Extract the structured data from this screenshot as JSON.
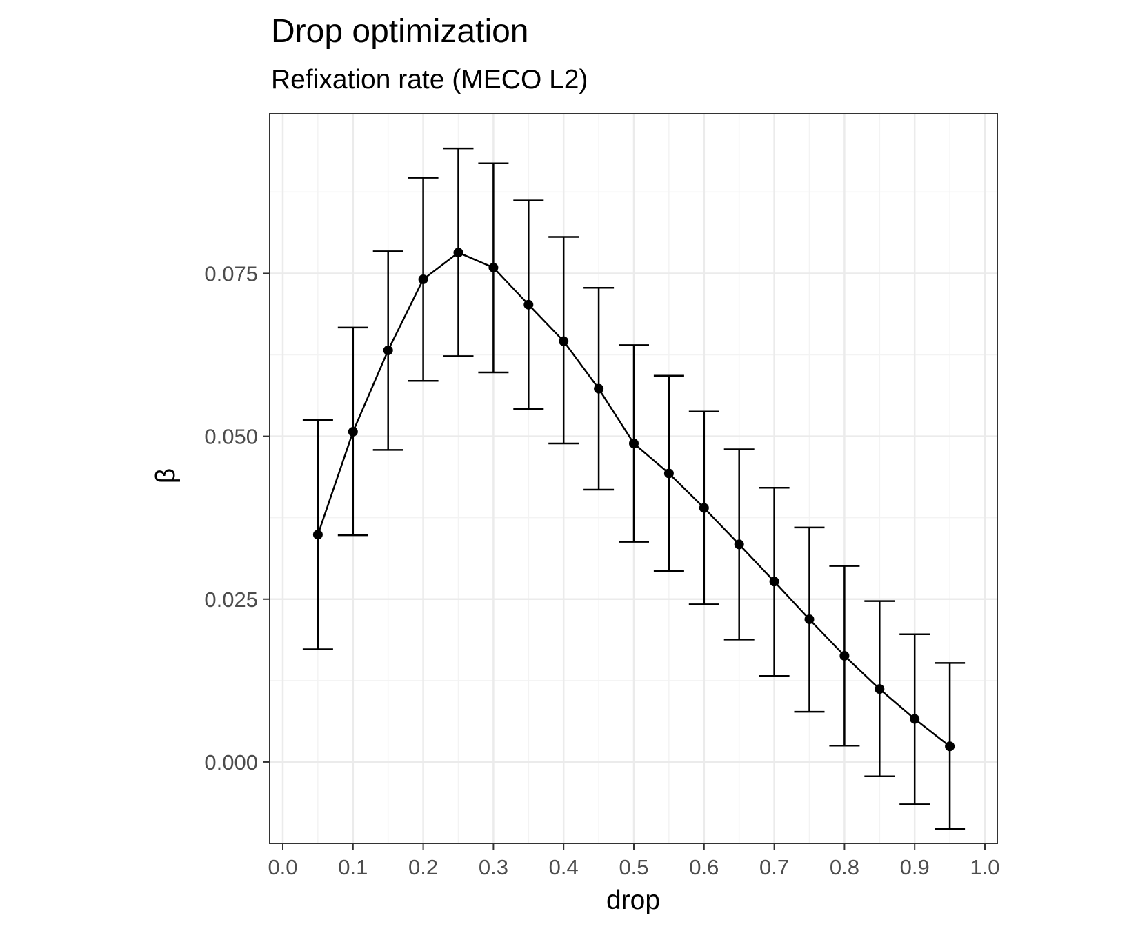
{
  "chart_data": {
    "type": "line",
    "title": "Drop optimization",
    "subtitle": "Refixation rate (MECO L2)",
    "xlabel": "drop",
    "ylabel": "β",
    "xlim": [
      0.0,
      1.0
    ],
    "ylim": [
      -0.0125,
      0.0995
    ],
    "x_ticks": [
      0.0,
      0.1,
      0.2,
      0.3,
      0.4,
      0.5,
      0.6,
      0.7,
      0.8,
      0.9,
      1.0
    ],
    "x_tick_labels": [
      "0.0",
      "0.1",
      "0.2",
      "0.3",
      "0.4",
      "0.5",
      "0.6",
      "0.7",
      "0.8",
      "0.9",
      "1.0"
    ],
    "y_ticks": [
      0.0,
      0.025,
      0.05,
      0.075
    ],
    "y_tick_labels": [
      "0.000",
      "0.025",
      "0.050",
      "0.075"
    ],
    "grid": true,
    "legend": "none",
    "x": [
      0.05,
      0.1,
      0.15,
      0.2,
      0.25,
      0.3,
      0.35,
      0.4,
      0.45,
      0.5,
      0.55,
      0.6,
      0.65,
      0.7,
      0.75,
      0.8,
      0.85,
      0.9,
      0.95
    ],
    "y": [
      0.0349,
      0.0507,
      0.0632,
      0.0741,
      0.0782,
      0.0759,
      0.0702,
      0.0646,
      0.0573,
      0.0489,
      0.0443,
      0.039,
      0.0334,
      0.0277,
      0.0219,
      0.0163,
      0.0112,
      0.0066,
      0.0024
    ],
    "y_lower": [
      0.0173,
      0.0348,
      0.0479,
      0.0585,
      0.0623,
      0.0598,
      0.0542,
      0.0489,
      0.0418,
      0.0338,
      0.0293,
      0.0242,
      0.0188,
      0.0132,
      0.0077,
      0.0025,
      -0.0022,
      -0.0065,
      -0.0103
    ],
    "y_upper": [
      0.0525,
      0.0667,
      0.0784,
      0.0897,
      0.0942,
      0.0919,
      0.0862,
      0.0806,
      0.0728,
      0.064,
      0.0593,
      0.0538,
      0.048,
      0.0421,
      0.036,
      0.0301,
      0.0247,
      0.0196,
      0.0152
    ],
    "colors": {
      "line": "#000000",
      "point": "#000000",
      "grid_major": "#ebebeb",
      "grid_minor": "#f3f3f3",
      "panel_border": "#333333",
      "tick_label": "#4d4d4d"
    }
  }
}
